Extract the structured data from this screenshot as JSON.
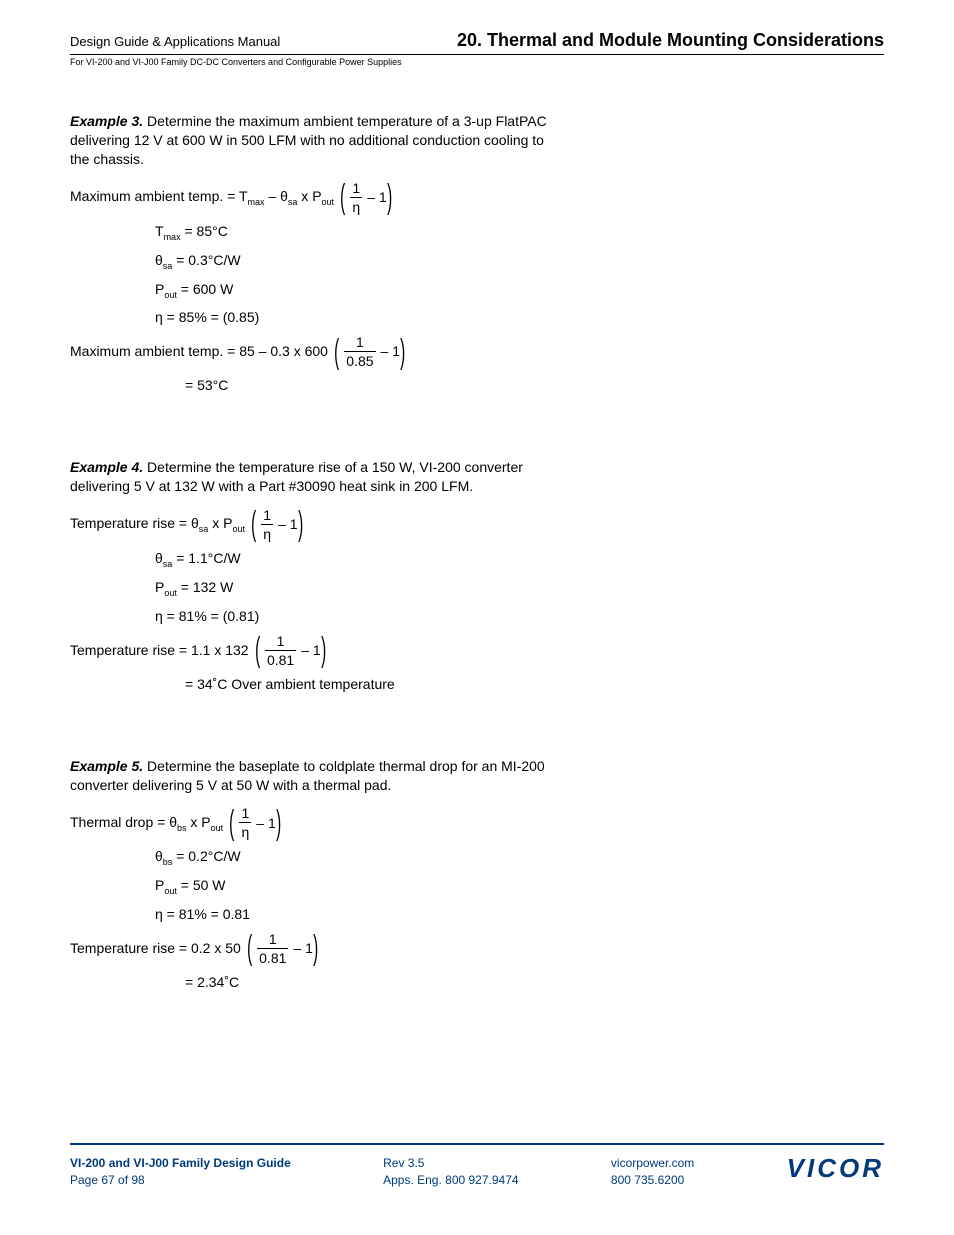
{
  "header": {
    "left": "Design Guide & Applications Manual",
    "right": "20. Thermal and Module Mounting Considerations",
    "sub": "For VI-200 and VI-J00 Family DC-DC Converters and Configurable Power Supplies"
  },
  "ex3": {
    "label": "Example 3.",
    "text": "Determine the maximum ambient temperature of a 3-up FlatPAC delivering 12 V at 600 W in 500 LFM with no additional conduction cooling to the chassis.",
    "eq1_lhs": "Maximum ambient temp. = T",
    "eq1_lhs_sub": "max",
    "eq1_mid1": " – θ",
    "eq1_mid1_sub": "sa",
    "eq1_mid2": " x P",
    "eq1_mid2_sub": "out",
    "frac1_num": "1",
    "frac1_den": "η",
    "frac_tail": " – 1",
    "v_tmax_l": "T",
    "v_tmax_ls": "max",
    "v_tmax_r": " = 85°C",
    "v_th_l": "θ",
    "v_th_ls": "sa",
    "v_th_r": " = 0.3°C/W",
    "v_po_l": "P",
    "v_po_ls": "out",
    "v_po_r": " = 600 W",
    "v_eta": "η = 85% = (0.85)",
    "eq2_lhs": "Maximum ambient temp. = 85 – 0.3 x 600",
    "frac2_num": "1",
    "frac2_den": "0.85",
    "result": "= 53°C"
  },
  "ex4": {
    "label": "Example 4.",
    "text": "Determine the temperature rise of a 150 W, VI-200 converter delivering 5 V at 132 W with a Part #30090 heat sink in 200 LFM.",
    "eq1_lhs": "Temperature rise = θ",
    "eq1_lhs_sub": "sa",
    "eq1_mid": " x P",
    "eq1_mid_sub": "out",
    "frac1_num": "1",
    "frac1_den": "η",
    "frac_tail": " – 1",
    "v_th_l": "θ",
    "v_th_ls": "sa",
    "v_th_r": " = 1.1°C/W",
    "v_po_l": "P",
    "v_po_ls": "out",
    "v_po_r": " = 132 W",
    "v_eta": "η = 81% = (0.81)",
    "eq2_lhs": "Temperature rise = 1.1 x 132",
    "frac2_num": "1",
    "frac2_den": "0.81",
    "result": "= 34˚C Over ambient temperature"
  },
  "ex5": {
    "label": "Example 5.",
    "text": "Determine the baseplate to coldplate thermal drop for an MI-200 converter delivering 5 V at 50 W with a thermal pad.",
    "eq1_lhs": "Thermal drop = θ",
    "eq1_lhs_sub": "bs",
    "eq1_mid": " x P",
    "eq1_mid_sub": "out",
    "frac1_num": "1",
    "frac1_den": "η",
    "frac_tail": " – 1",
    "v_th_l": "θ",
    "v_th_ls": "bs",
    "v_th_r": " = 0.2°C/W",
    "v_po_l": "P",
    "v_po_ls": "out",
    "v_po_r": " = 50 W",
    "v_eta": "η = 81% = 0.81",
    "eq2_lhs": "Temperature rise = 0.2 x 50",
    "frac2_num": "1",
    "frac2_den": "0.81",
    "result": "= 2.34˚C"
  },
  "footer": {
    "col1a": "VI-200 and VI-J00 Family Design Guide",
    "col1b": "Page 67 of 98",
    "col2a": "Rev 3.5",
    "col2b": "Apps. Eng. 800 927.9474",
    "col3a": "vicorpower.com",
    "col3b": "800 735.6200",
    "logo": "VICOR",
    "brand_color": "#003a7a"
  }
}
